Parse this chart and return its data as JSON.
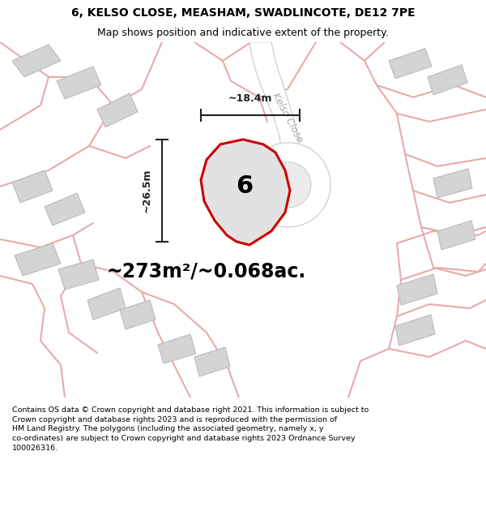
{
  "title_line1": "6, KELSO CLOSE, MEASHAM, SWADLINCOTE, DE12 7PE",
  "title_line2": "Map shows position and indicative extent of the property.",
  "area_label": "~273m²/~0.068ac.",
  "plot_number": "6",
  "dim_vertical": "~26.5m",
  "dim_horizontal": "~18.4m",
  "street_label": "Kelso Close",
  "footer_text": "Contains OS data © Crown copyright and database right 2021. This information is subject to Crown copyright and database rights 2023 and is reproduced with the permission of HM Land Registry. The polygons (including the associated geometry, namely x, y co-ordinates) are subject to Crown copyright and database rights 2023 Ordnance Survey 100026316.",
  "bg_color": "#ffffff",
  "map_bg": "#ebebeb",
  "building_fill": "#d4d4d4",
  "building_edge": "#bbbbbb",
  "road_white": "#ffffff",
  "road_gray_edge": "#c8c8c8",
  "pink_road": "#e8aaaa",
  "plot_fill": "#e0e0e0",
  "plot_edge": "#cc0000",
  "dim_color": "#222222",
  "street_label_color": "#aaaaaa",
  "title_fontsize": 10,
  "subtitle_fontsize": 9,
  "area_fontsize": 17,
  "plot_num_fontsize": 22,
  "dim_fontsize": 9,
  "footer_fontsize": 6.8
}
